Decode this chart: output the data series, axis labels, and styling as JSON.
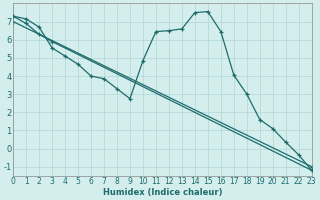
{
  "xlabel": "Humidex (Indice chaleur)",
  "bg_color": "#d4eeee",
  "grid_color": "#b8d8d8",
  "line_color": "#1e6b6b",
  "xlim": [
    0,
    23
  ],
  "ylim": [
    -1.5,
    8.0
  ],
  "xticks": [
    0,
    1,
    2,
    3,
    4,
    5,
    6,
    7,
    8,
    9,
    10,
    11,
    12,
    13,
    14,
    15,
    16,
    17,
    18,
    19,
    20,
    21,
    22,
    23
  ],
  "yticks": [
    -1,
    0,
    1,
    2,
    3,
    4,
    5,
    6,
    7
  ],
  "line1_x": [
    0,
    1,
    2,
    3,
    4,
    5,
    6,
    7,
    8,
    9,
    10,
    11,
    12,
    13,
    14,
    15,
    16,
    17,
    18,
    19,
    20,
    21,
    22,
    23
  ],
  "line1_y": [
    7.3,
    7.15,
    6.7,
    5.55,
    5.1,
    4.65,
    4.0,
    3.85,
    3.3,
    2.75,
    4.85,
    6.45,
    6.5,
    6.6,
    7.5,
    7.55,
    6.45,
    4.05,
    3.0,
    1.6,
    1.1,
    0.35,
    -0.35,
    -1.2
  ],
  "line2_x": [
    0,
    1,
    2,
    3,
    23
  ],
  "line2_y": [
    7.3,
    6.9,
    6.3,
    5.9,
    -1.2
  ],
  "line3_x": [
    0,
    23
  ],
  "line3_y": [
    7.0,
    -1.0
  ],
  "xlabel_fontsize": 6,
  "tick_fontsize": 5.5
}
